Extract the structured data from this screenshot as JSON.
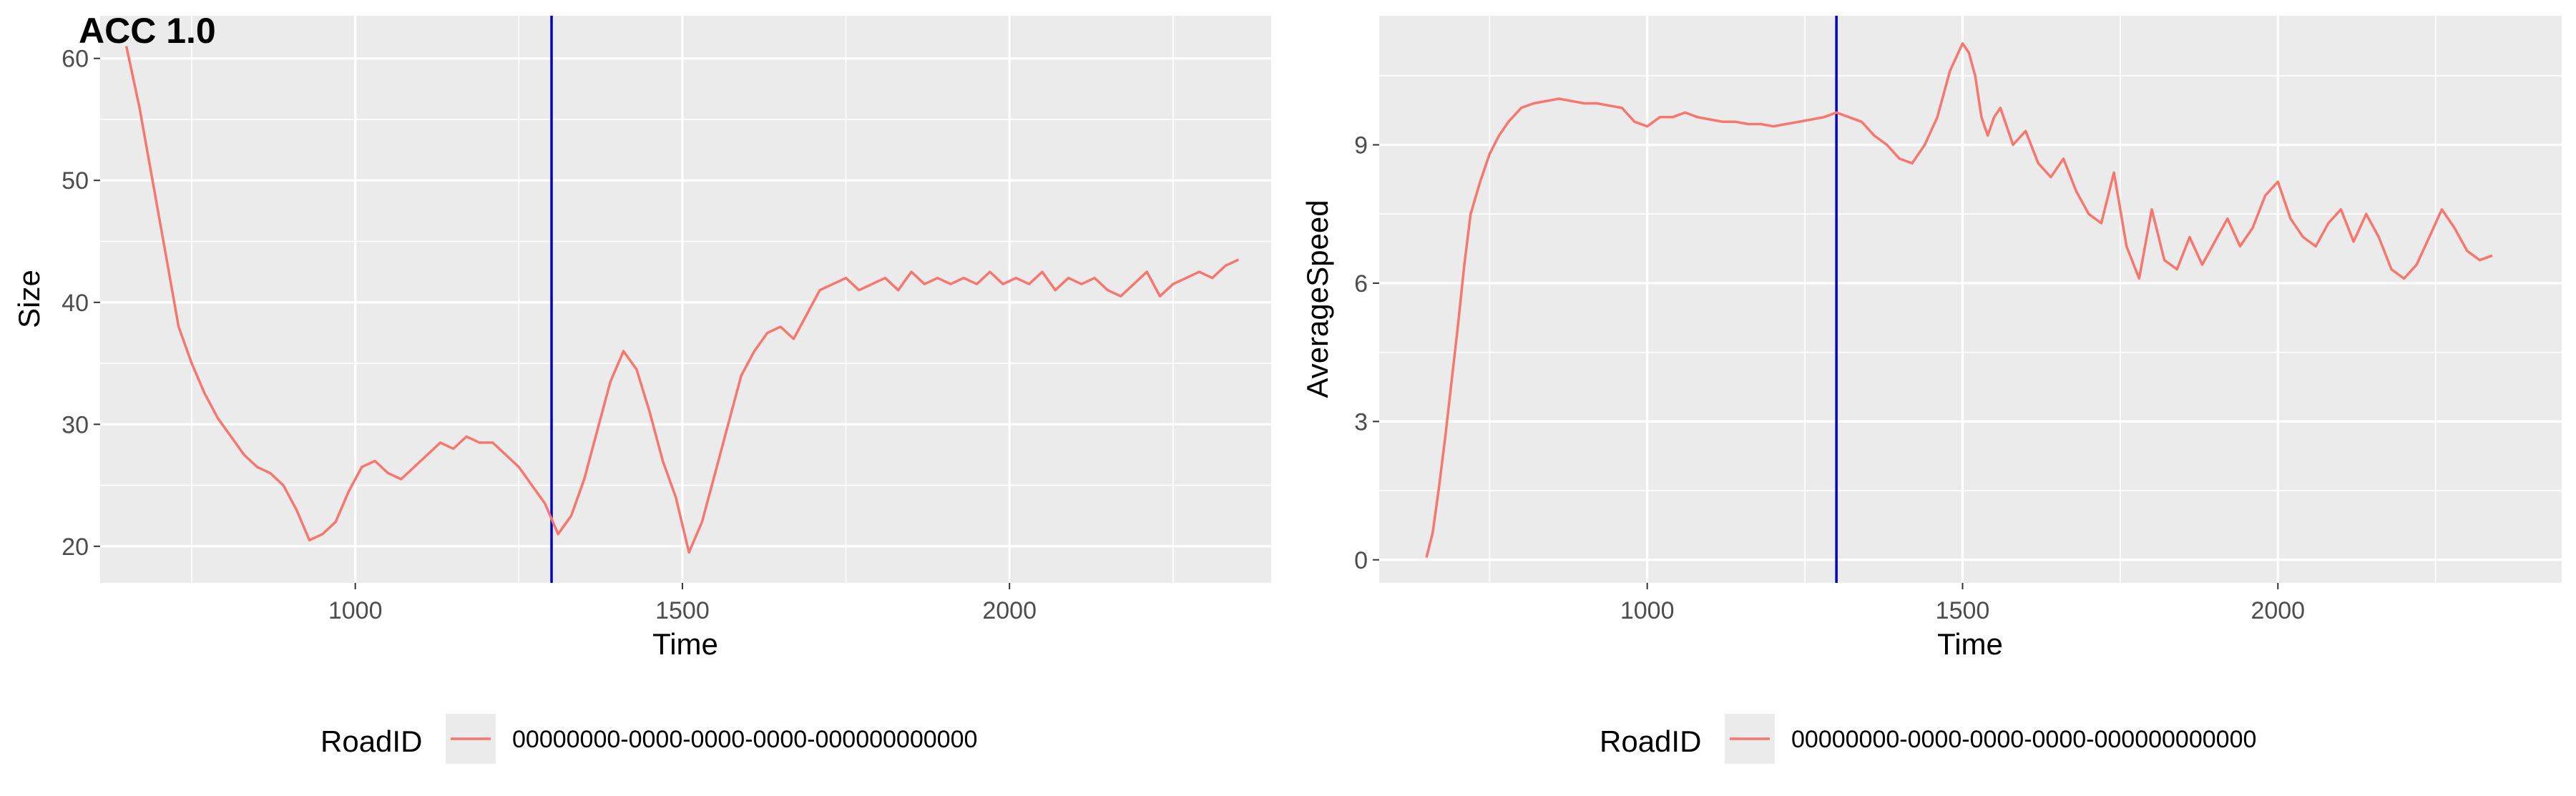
{
  "figure": {
    "tag": "ACC 1.0",
    "line_color": "#F8766D",
    "vline_color": "#0000CC",
    "panel_color": "#EBEBEB"
  },
  "chart_data": [
    {
      "type": "line",
      "xlabel": "Time",
      "ylabel": "Size",
      "xlim": [
        610,
        2400
      ],
      "ylim": [
        17,
        63.5
      ],
      "xticks": [
        1000,
        1500,
        2000
      ],
      "yticks": [
        20,
        30,
        40,
        50,
        60
      ],
      "grid": true,
      "vline": 1300,
      "legend": {
        "title": "RoadID",
        "position": "bottom",
        "entries": [
          "00000000-0000-0000-0000-000000000000"
        ]
      },
      "series": [
        {
          "name": "00000000-0000-0000-0000-000000000000",
          "x": [
            650,
            670,
            690,
            710,
            730,
            750,
            770,
            790,
            810,
            830,
            850,
            870,
            890,
            910,
            930,
            950,
            970,
            990,
            1010,
            1030,
            1050,
            1070,
            1090,
            1110,
            1130,
            1150,
            1170,
            1190,
            1210,
            1230,
            1250,
            1270,
            1290,
            1310,
            1330,
            1350,
            1370,
            1390,
            1410,
            1430,
            1450,
            1470,
            1490,
            1510,
            1530,
            1550,
            1570,
            1590,
            1610,
            1630,
            1650,
            1670,
            1690,
            1710,
            1730,
            1750,
            1770,
            1790,
            1810,
            1830,
            1850,
            1870,
            1890,
            1910,
            1930,
            1950,
            1970,
            1990,
            2010,
            2030,
            2050,
            2070,
            2090,
            2110,
            2130,
            2150,
            2170,
            2190,
            2210,
            2230,
            2250,
            2270,
            2290,
            2310,
            2330,
            2350
          ],
          "values": [
            61,
            56,
            50,
            44,
            38,
            35,
            32.5,
            30.5,
            29,
            27.5,
            26.5,
            26,
            25,
            23,
            20.5,
            21,
            22,
            24.5,
            26.5,
            27,
            26,
            25.5,
            26.5,
            27.5,
            28.5,
            28,
            29,
            28.5,
            28.5,
            27.5,
            26.5,
            25,
            23.5,
            21,
            22.5,
            25.5,
            29.5,
            33.5,
            36,
            34.5,
            31,
            27,
            24,
            19.5,
            22,
            26,
            30,
            34,
            36,
            37.5,
            38,
            37,
            39,
            41,
            41.5,
            42,
            41,
            41.5,
            42,
            41,
            42.5,
            41.5,
            42,
            41.5,
            42,
            41.5,
            42.5,
            41.5,
            42,
            41.5,
            42.5,
            41,
            42,
            41.5,
            42,
            41,
            40.5,
            41.5,
            42.5,
            40.5,
            41.5,
            42,
            42.5,
            42,
            43,
            43.5
          ]
        }
      ]
    },
    {
      "type": "line",
      "xlabel": "Time",
      "ylabel": "AverageSpeed",
      "xlim": [
        575,
        2450
      ],
      "ylim": [
        -0.5,
        11.8
      ],
      "xticks": [
        1000,
        1500,
        2000
      ],
      "yticks": [
        0,
        3,
        6,
        9
      ],
      "grid": true,
      "vline": 1300,
      "legend": {
        "title": "RoadID",
        "position": "bottom",
        "entries": [
          "00000000-0000-0000-0000-000000000000"
        ]
      },
      "series": [
        {
          "name": "00000000-0000-0000-0000-000000000000",
          "x": [
            650,
            660,
            670,
            680,
            690,
            700,
            710,
            720,
            735,
            750,
            765,
            780,
            800,
            820,
            840,
            860,
            880,
            900,
            920,
            940,
            960,
            980,
            1000,
            1020,
            1040,
            1060,
            1080,
            1100,
            1120,
            1140,
            1160,
            1180,
            1200,
            1220,
            1240,
            1260,
            1280,
            1300,
            1320,
            1340,
            1360,
            1380,
            1400,
            1420,
            1440,
            1460,
            1480,
            1500,
            1510,
            1520,
            1530,
            1540,
            1550,
            1560,
            1580,
            1600,
            1620,
            1640,
            1660,
            1680,
            1700,
            1720,
            1740,
            1760,
            1780,
            1800,
            1820,
            1840,
            1860,
            1880,
            1900,
            1920,
            1940,
            1960,
            1980,
            2000,
            2020,
            2040,
            2060,
            2080,
            2100,
            2120,
            2140,
            2160,
            2180,
            2200,
            2220,
            2240,
            2260,
            2280,
            2300,
            2320,
            2340
          ],
          "values": [
            0.05,
            0.6,
            1.6,
            2.7,
            3.9,
            5.1,
            6.4,
            7.5,
            8.2,
            8.8,
            9.2,
            9.5,
            9.8,
            9.9,
            9.95,
            10.0,
            9.95,
            9.9,
            9.9,
            9.85,
            9.8,
            9.5,
            9.4,
            9.6,
            9.6,
            9.7,
            9.6,
            9.55,
            9.5,
            9.5,
            9.45,
            9.45,
            9.4,
            9.45,
            9.5,
            9.55,
            9.6,
            9.7,
            9.6,
            9.5,
            9.2,
            9.0,
            8.7,
            8.6,
            9.0,
            9.6,
            10.6,
            11.2,
            11.0,
            10.5,
            9.6,
            9.2,
            9.6,
            9.8,
            9.0,
            9.3,
            8.6,
            8.3,
            8.7,
            8.0,
            7.5,
            7.3,
            8.4,
            6.8,
            6.1,
            7.6,
            6.5,
            6.3,
            7.0,
            6.4,
            6.9,
            7.4,
            6.8,
            7.2,
            7.9,
            8.2,
            7.4,
            7.0,
            6.8,
            7.3,
            7.6,
            6.9,
            7.5,
            7.0,
            6.3,
            6.1,
            6.4,
            7.0,
            7.6,
            7.2,
            6.7,
            6.5,
            6.6
          ]
        }
      ]
    }
  ]
}
